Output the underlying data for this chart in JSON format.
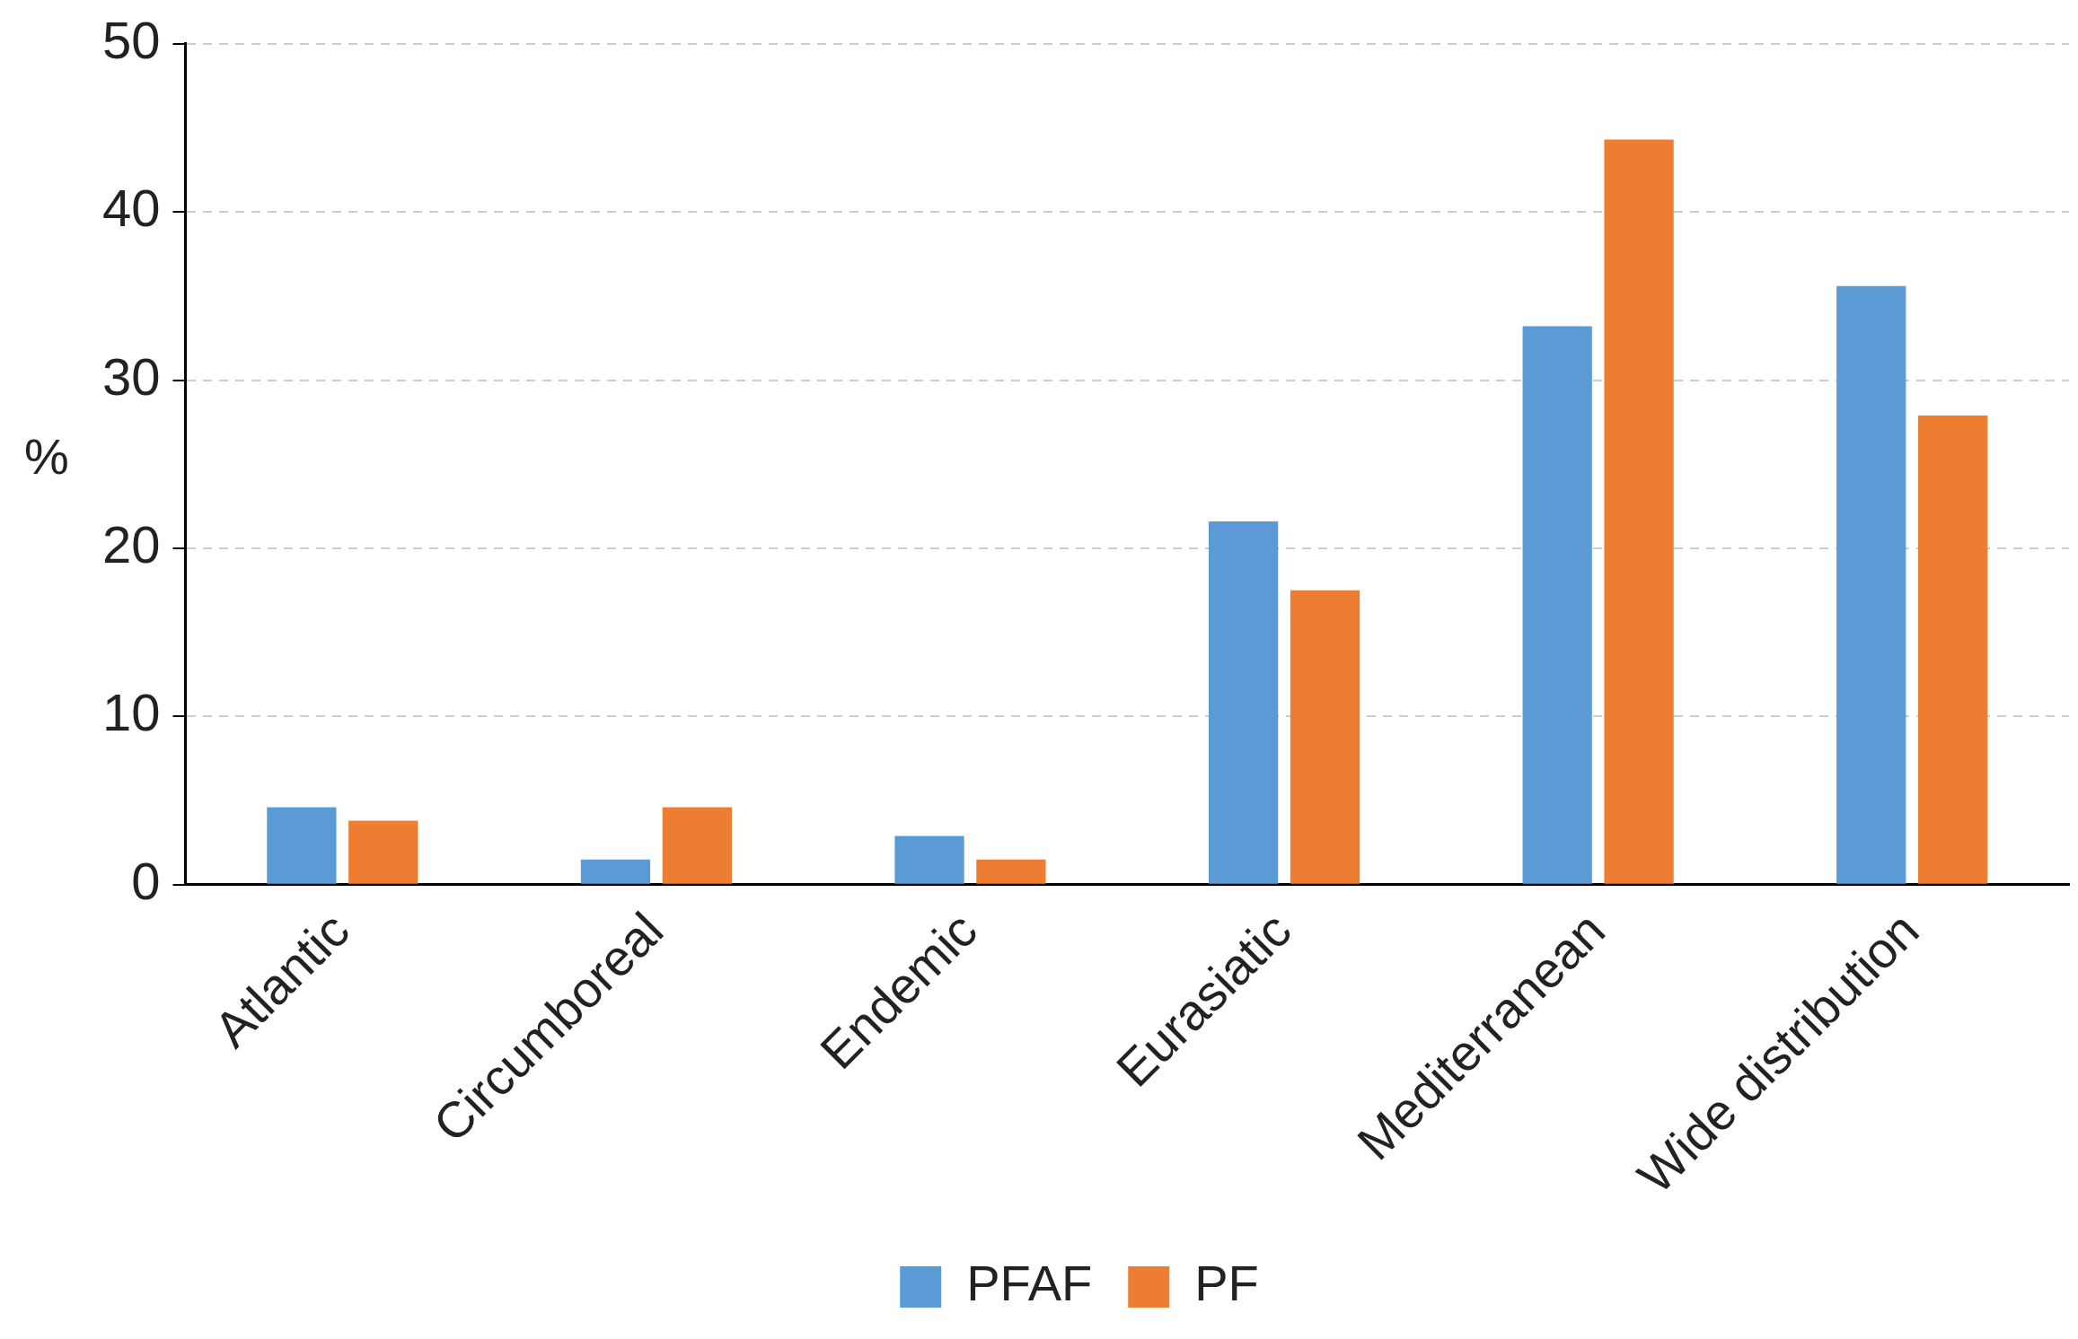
{
  "chart_data": {
    "type": "bar",
    "ylabel": "%",
    "categories": [
      "Atlantic",
      "Circumboreal",
      "Endemic",
      "Eurasiatic",
      "Mediterranean",
      "Wide distribution"
    ],
    "series": [
      {
        "name": "PFAF",
        "color": "#5b9bd5",
        "values": [
          4.6,
          1.5,
          2.9,
          21.6,
          33.2,
          35.6
        ]
      },
      {
        "name": "PF",
        "color": "#ed7d31",
        "values": [
          3.8,
          4.6,
          1.5,
          17.5,
          44.3,
          27.9
        ]
      }
    ],
    "ylim": [
      0,
      50
    ],
    "yticks": [
      0,
      10,
      20,
      30,
      40,
      50
    ],
    "grid": "y",
    "legend": "bottom"
  }
}
